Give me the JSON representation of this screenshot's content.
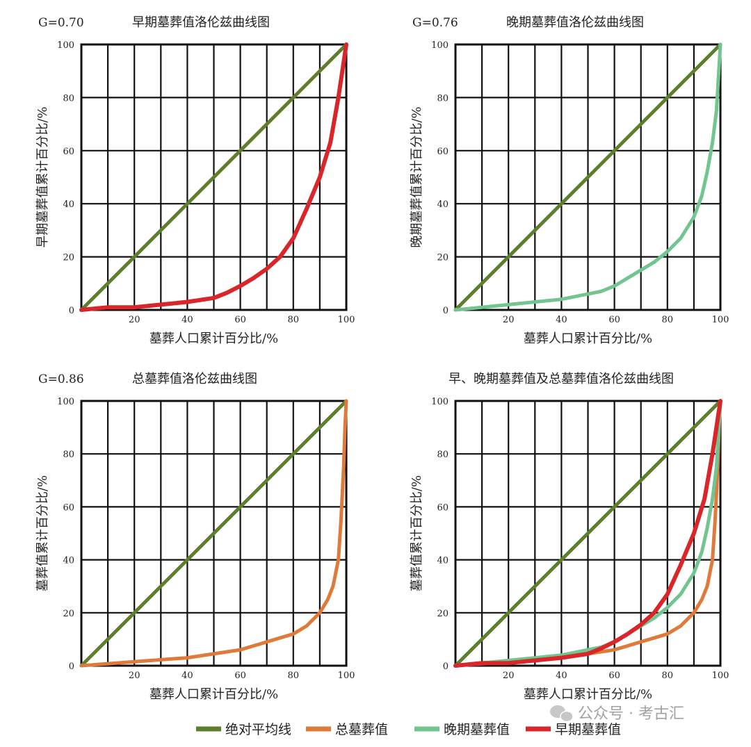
{
  "chart_data": [
    {
      "type": "line",
      "title": "早期墓葬值洛伦兹曲线图",
      "annotation": "G=0.70",
      "xlabel": "墓葬人口累计百分比/%",
      "ylabel": "早期墓葬值累计百分比/%",
      "xlim": [
        0,
        100
      ],
      "ylim": [
        0,
        100
      ],
      "x_ticks": [
        "20",
        "40",
        "60",
        "80",
        "100"
      ],
      "y_ticks": [
        "0",
        "20",
        "40",
        "60",
        "80",
        "100"
      ],
      "grid": true,
      "series": [
        {
          "key": "equality",
          "color": "#5e7d2d",
          "x": [
            0,
            100
          ],
          "y": [
            0,
            100
          ]
        },
        {
          "key": "early",
          "color": "#d8262b",
          "x": [
            0,
            10,
            20,
            30,
            40,
            50,
            55,
            60,
            65,
            70,
            75,
            80,
            85,
            90,
            94,
            97,
            100
          ],
          "y": [
            0,
            1,
            1,
            2,
            3,
            4.5,
            6.5,
            9,
            12,
            15.5,
            20,
            27,
            38,
            50,
            63,
            80,
            100
          ]
        }
      ]
    },
    {
      "type": "line",
      "title": "晚期墓葬值洛伦兹曲线图",
      "annotation": "G=0.76",
      "xlabel": "墓葬人口累计百分比/%",
      "ylabel": "晚期墓葬值累计百分比/%",
      "xlim": [
        0,
        100
      ],
      "ylim": [
        0,
        100
      ],
      "x_ticks": [
        "20",
        "40",
        "60",
        "80",
        "100"
      ],
      "y_ticks": [
        "0",
        "20",
        "40",
        "60",
        "80",
        "100"
      ],
      "grid": true,
      "series": [
        {
          "key": "equality",
          "color": "#5e7d2d",
          "x": [
            0,
            100
          ],
          "y": [
            0,
            100
          ]
        },
        {
          "key": "late",
          "color": "#72c490",
          "x": [
            0,
            10,
            20,
            30,
            40,
            50,
            55,
            60,
            65,
            70,
            75,
            80,
            85,
            90,
            93,
            95,
            97,
            98.5,
            100
          ],
          "y": [
            0,
            1,
            2,
            3,
            4,
            6,
            7,
            9,
            12,
            15,
            18,
            22,
            27,
            35,
            43,
            52,
            63,
            75,
            100
          ]
        }
      ]
    },
    {
      "type": "line",
      "title": "总墓葬值洛伦兹曲线图",
      "annotation": "G=0.86",
      "xlabel": "墓葬人口累计百分比/%",
      "ylabel": "墓葬值累计百分比/%",
      "xlim": [
        0,
        100
      ],
      "ylim": [
        0,
        100
      ],
      "x_ticks": [
        "20",
        "40",
        "60",
        "80",
        "100"
      ],
      "y_ticks": [
        "0",
        "20",
        "40",
        "60",
        "80",
        "100"
      ],
      "grid": true,
      "series": [
        {
          "key": "equality",
          "color": "#5e7d2d",
          "x": [
            0,
            100
          ],
          "y": [
            0,
            100
          ]
        },
        {
          "key": "total",
          "color": "#e07a3a",
          "x": [
            0,
            20,
            40,
            60,
            70,
            80,
            85,
            90,
            93,
            95,
            97,
            98,
            99,
            99.5,
            100
          ],
          "y": [
            0,
            1.5,
            3,
            6,
            9,
            12,
            15,
            20,
            25,
            30,
            40,
            55,
            75,
            90,
            100
          ]
        }
      ]
    },
    {
      "type": "line",
      "title": "早、晚期墓葬值及总墓葬值洛伦兹曲线图",
      "xlabel": "墓葬人口累计百分比/%",
      "ylabel": "墓葬值累计百分比/%",
      "xlim": [
        0,
        100
      ],
      "ylim": [
        0,
        100
      ],
      "x_ticks": [
        "20",
        "40",
        "60",
        "80",
        "100"
      ],
      "y_ticks": [
        "0",
        "20",
        "40",
        "60",
        "80",
        "100"
      ],
      "grid": true,
      "series": [
        {
          "key": "equality",
          "color": "#5e7d2d",
          "x": [
            0,
            100
          ],
          "y": [
            0,
            100
          ]
        },
        {
          "key": "total",
          "color": "#e07a3a",
          "x": [
            0,
            20,
            40,
            60,
            70,
            80,
            85,
            90,
            93,
            95,
            97,
            98,
            99,
            99.5,
            100
          ],
          "y": [
            0,
            1.5,
            3,
            6,
            9,
            12,
            15,
            20,
            25,
            30,
            40,
            55,
            75,
            90,
            100
          ]
        },
        {
          "key": "late",
          "color": "#72c490",
          "x": [
            0,
            10,
            20,
            30,
            40,
            50,
            55,
            60,
            65,
            70,
            75,
            80,
            85,
            90,
            93,
            95,
            97,
            98.5,
            100
          ],
          "y": [
            0,
            1,
            2,
            3,
            4,
            6,
            7,
            9,
            12,
            15,
            18,
            22,
            27,
            35,
            43,
            52,
            63,
            75,
            100
          ]
        },
        {
          "key": "early",
          "color": "#d8262b",
          "x": [
            0,
            10,
            20,
            30,
            40,
            50,
            55,
            60,
            65,
            70,
            75,
            80,
            85,
            90,
            94,
            97,
            100
          ],
          "y": [
            0,
            1,
            1,
            2,
            3,
            4.5,
            6.5,
            9,
            12,
            15.5,
            20,
            27,
            38,
            50,
            63,
            80,
            100
          ]
        }
      ]
    }
  ],
  "legend": [
    {
      "key": "equality",
      "label": "绝对平均线",
      "color": "#5e7d2d"
    },
    {
      "key": "total",
      "label": "总墓葬值",
      "color": "#e07a3a"
    },
    {
      "key": "late",
      "label": "晚期墓葬值",
      "color": "#72c490"
    },
    {
      "key": "early",
      "label": "早期墓葬值",
      "color": "#d8262b"
    }
  ],
  "watermark": {
    "text": "公众号 · 考古汇",
    "icon": "wechat-icon"
  }
}
